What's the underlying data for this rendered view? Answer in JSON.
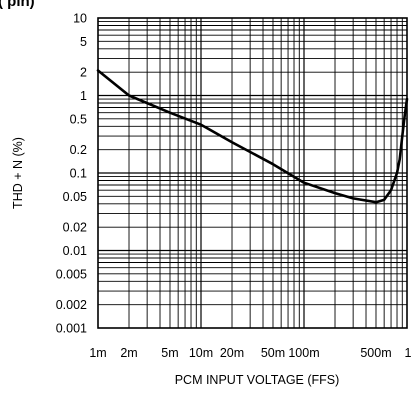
{
  "page": {
    "cropped_title": "(         pin)"
  },
  "chart_data": {
    "type": "line",
    "title": "",
    "xlabel": "PCM INPUT VOLTAGE (FFS)",
    "ylabel": "THD + N (%)",
    "xscale": "log",
    "yscale": "log",
    "xlim": [
      0.001,
      1
    ],
    "ylim": [
      0.001,
      10
    ],
    "grid": true,
    "x_tick_values": [
      0.001,
      0.002,
      0.005,
      0.01,
      0.02,
      0.05,
      0.1,
      0.5,
      1
    ],
    "x_tick_labels": [
      "1m",
      "2m",
      "5m",
      "10m",
      "20m",
      "50m",
      "100m",
      "500m",
      "1"
    ],
    "y_tick_values": [
      10,
      5,
      2,
      1,
      0.5,
      0.2,
      0.1,
      0.05,
      0.02,
      0.01,
      0.005,
      0.002,
      0.001
    ],
    "y_tick_labels": [
      "10",
      "5",
      "2",
      "1",
      "0.5",
      "0.2",
      "0.1",
      "0.05",
      "0.02",
      "0.01",
      "0.005",
      "0.002",
      "0.001"
    ],
    "series": [
      {
        "x": [
          0.001,
          0.002,
          0.005,
          0.01,
          0.02,
          0.05,
          0.1,
          0.2,
          0.3,
          0.5,
          0.6,
          0.7,
          0.8,
          0.85,
          0.9,
          0.95,
          1.0
        ],
        "y": [
          2.1,
          1.0,
          0.6,
          0.42,
          0.25,
          0.13,
          0.075,
          0.055,
          0.047,
          0.042,
          0.045,
          0.06,
          0.1,
          0.15,
          0.3,
          0.55,
          0.9
        ]
      }
    ],
    "line_color": "#000000"
  }
}
